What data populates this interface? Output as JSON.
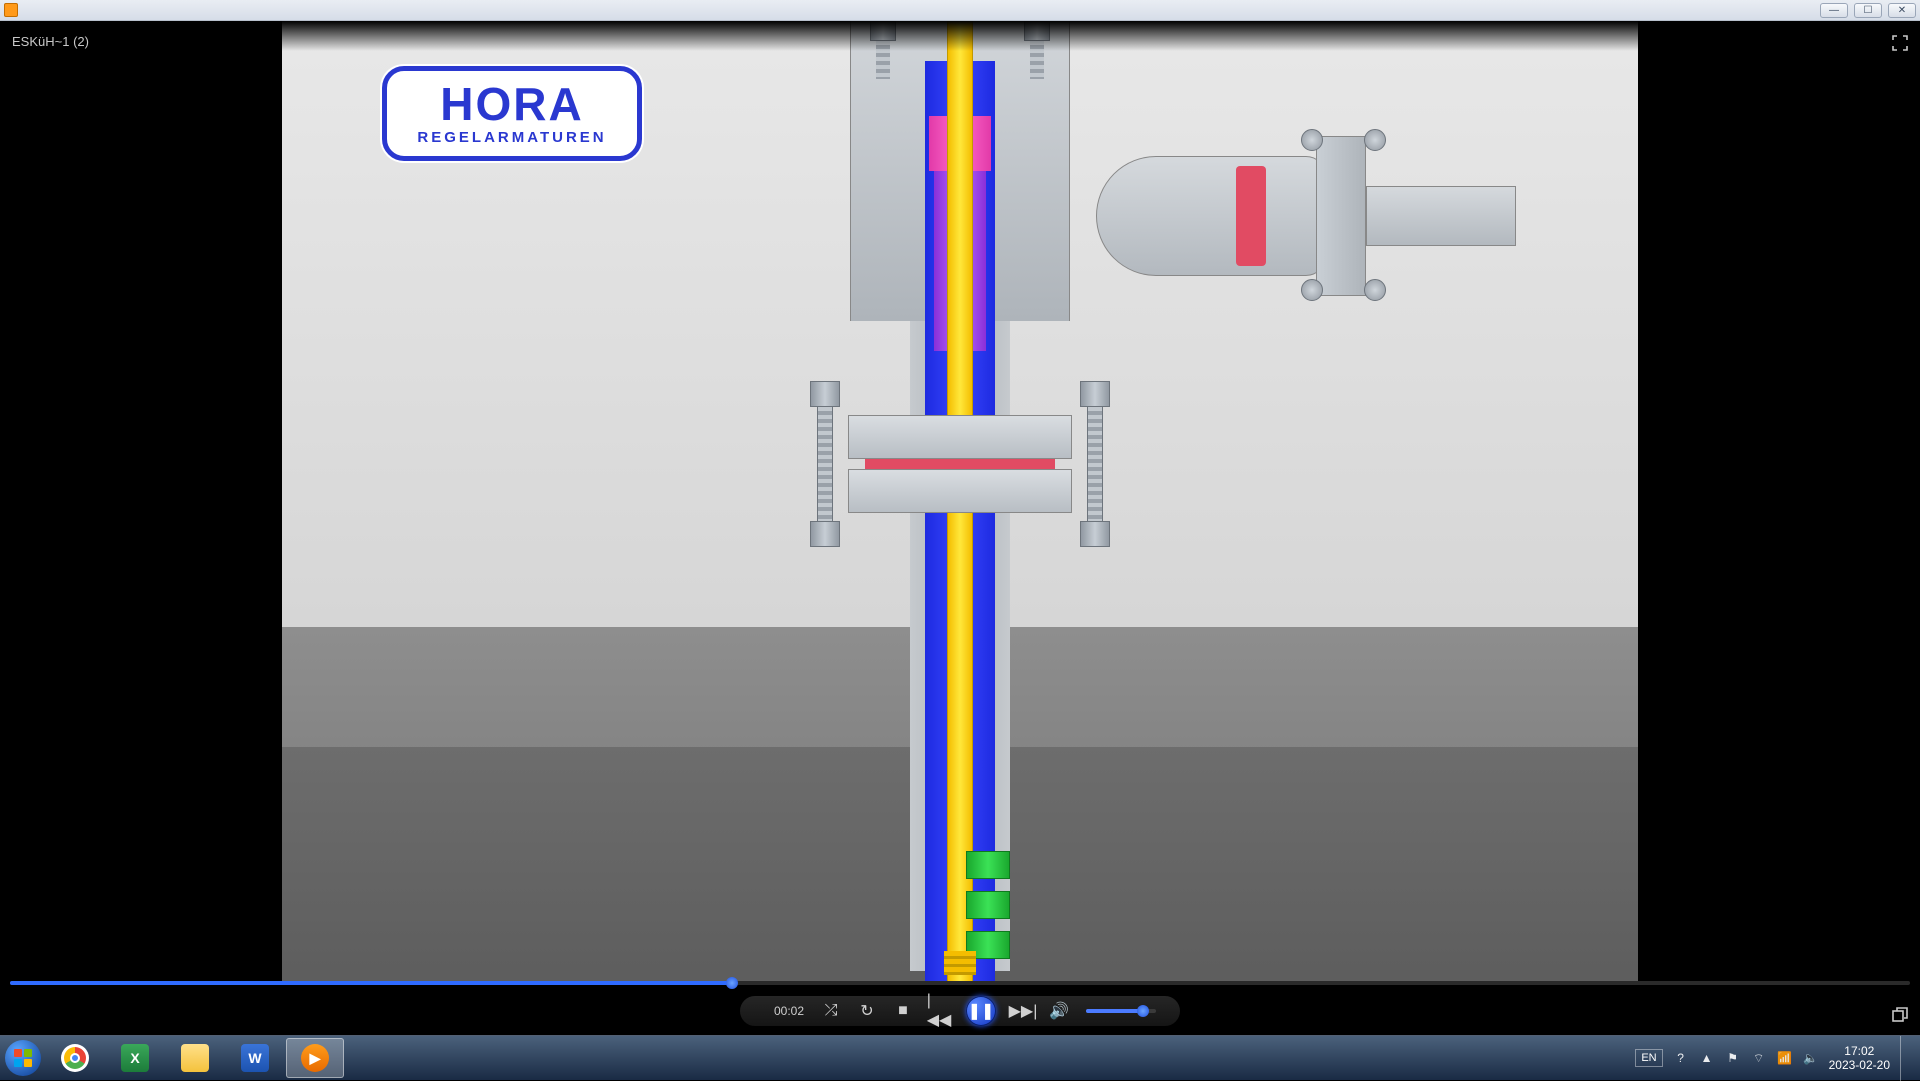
{
  "window": {
    "app_title": "",
    "buttons": {
      "min": "—",
      "max": "☐",
      "close": "✕"
    }
  },
  "player": {
    "file_label": "ESKüH~1 (2)",
    "time_elapsed": "00:02",
    "seek_percent": 38,
    "volume_percent": 82,
    "logo": {
      "line1": "HORA",
      "line2": "REGELARMATUREN"
    },
    "colors": {
      "blue": "#2a3df5",
      "purple": "#9a46e8",
      "magenta": "#e23aa8",
      "yellow": "#ffe83b",
      "green": "#2fc94a",
      "steel": "#c4cad0",
      "seal": "#e14b63"
    },
    "controls": {
      "shuffle": "⤮",
      "repeat": "↻",
      "stop": "■",
      "prev": "|◀◀",
      "pause": "❚❚",
      "next": "▶▶|",
      "mute": "🔊"
    }
  },
  "taskbar": {
    "apps": [
      {
        "name": "chrome",
        "label": "",
        "active": false
      },
      {
        "name": "excel",
        "label": "X",
        "active": false
      },
      {
        "name": "explorer",
        "label": "",
        "active": false
      },
      {
        "name": "word",
        "label": "W",
        "active": false
      },
      {
        "name": "wmp",
        "label": "▶",
        "active": true
      }
    ],
    "tray": {
      "lang": "EN",
      "icons": [
        "?",
        "▲",
        "⚑",
        "⌔",
        "📶",
        "🔈"
      ],
      "time": "17:02",
      "date": "2023-02-20"
    }
  }
}
